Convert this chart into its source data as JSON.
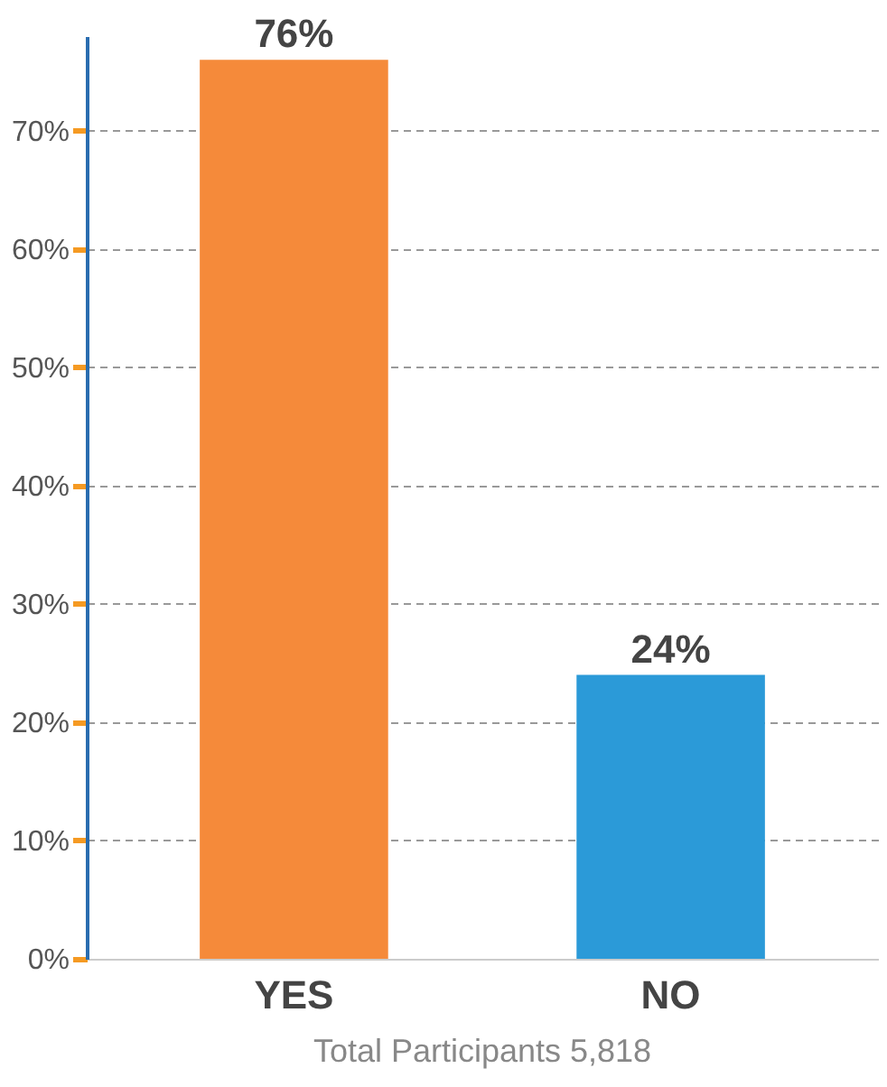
{
  "chart_data": {
    "type": "bar",
    "categories": [
      "YES",
      "NO"
    ],
    "values": [
      76,
      24
    ],
    "colors": [
      "#f58a3a",
      "#2b9ad8"
    ],
    "value_labels": [
      "76%",
      "24%"
    ],
    "ylim": [
      0,
      78
    ],
    "yticks": [
      {
        "value": 0,
        "label": "0%"
      },
      {
        "value": 10,
        "label": "10%"
      },
      {
        "value": 20,
        "label": "20%"
      },
      {
        "value": 30,
        "label": "30%"
      },
      {
        "value": 40,
        "label": "40%"
      },
      {
        "value": 50,
        "label": "50%"
      },
      {
        "value": 60,
        "label": "60%"
      },
      {
        "value": 70,
        "label": "70%"
      }
    ],
    "grid": "y",
    "line_style": "dashed",
    "annotations": [
      "Total Participants 5,818"
    ]
  }
}
